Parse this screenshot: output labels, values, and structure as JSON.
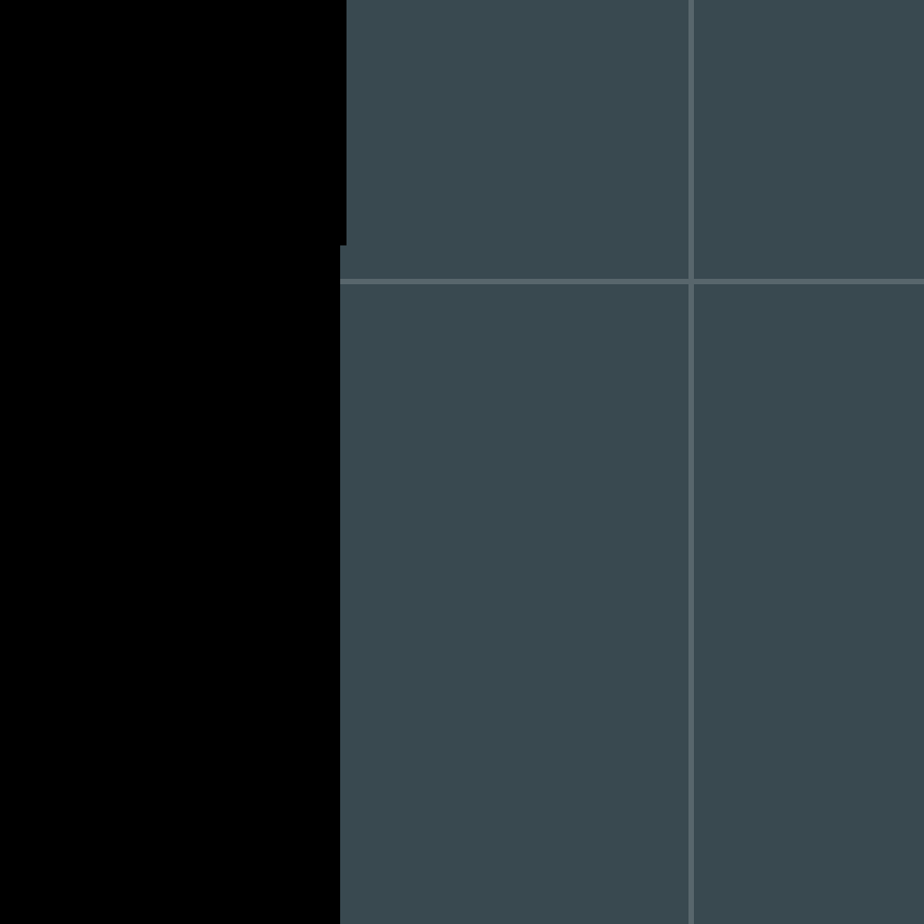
{
  "theme": {
    "background": "#000000",
    "canvas_fill": "#394950",
    "grid_line": "#58666c"
  },
  "canvas": {
    "grid_visible": true
  }
}
